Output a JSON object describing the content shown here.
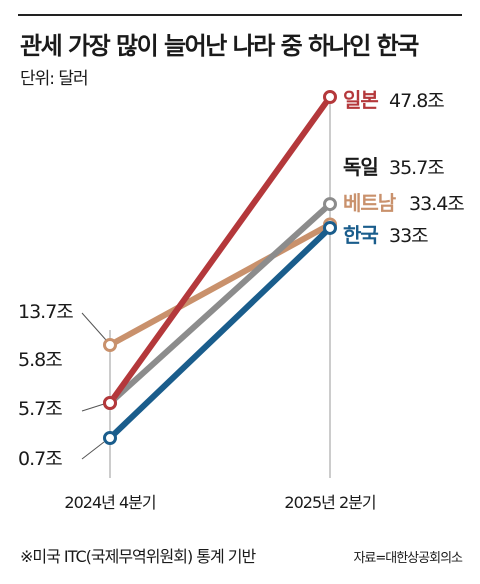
{
  "chart_data": {
    "type": "line",
    "title": "관세 가장 많이 늘어난 나라 중 하나인 한국",
    "unit_label": "단위: 달러",
    "categories": [
      "2024년 4분기",
      "2025년 2분기"
    ],
    "value_suffix": "조",
    "series": [
      {
        "name": "일본",
        "values": [
          5.7,
          47.8
        ],
        "color": "#b4383b"
      },
      {
        "name": "독일",
        "values": [
          5.8,
          35.7
        ],
        "color": "#8c8c8c"
      },
      {
        "name": "베트남",
        "values": [
          13.7,
          33.4
        ],
        "color": "#c9916c"
      },
      {
        "name": "한국",
        "values": [
          0.7,
          33
        ],
        "color": "#1a5d8c"
      }
    ],
    "start_labels": [
      "13.7조",
      "5.8조",
      "5.7조",
      "0.7조"
    ],
    "end_value_labels": [
      "47.8조",
      "35.7조",
      "33.4조",
      "33조"
    ],
    "footnote": "※미국 ITC(국제무역위원회) 통계 기반",
    "source": "자료=대한상공회의소"
  }
}
